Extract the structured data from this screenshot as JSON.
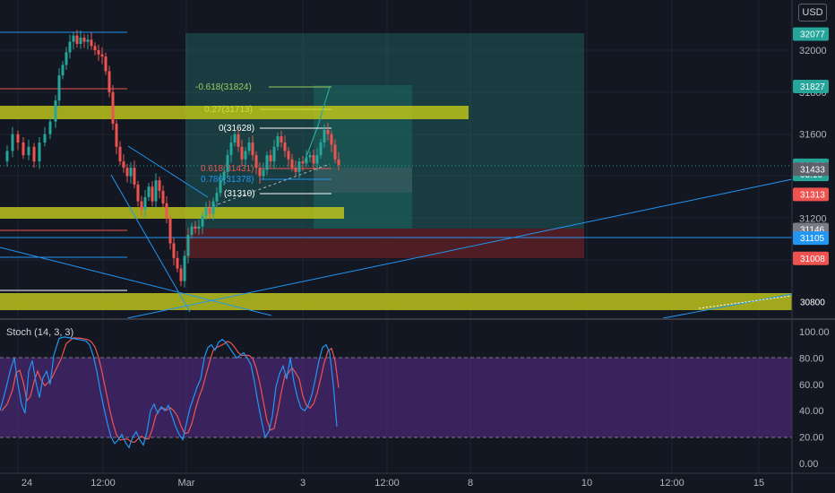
{
  "currency": "USD",
  "colors": {
    "background": "#131722",
    "grid": "#1f2330",
    "text": "#b2b5be",
    "up": "#26a69a",
    "down": "#ef5350",
    "zone_yellow": "#bcc21a",
    "trendline": "#2196f3",
    "target_zone": "#1e6b63",
    "stop_zone": "#5a1f25",
    "stoch_k": "#2196f3",
    "stoch_d": "#ef5350",
    "stoch_band": "#5b2d8e"
  },
  "price_axis": {
    "ticks": [
      "32000",
      "31800",
      "31600",
      "31200",
      "30800"
    ],
    "tags": [
      {
        "text": "32077",
        "price": 32077,
        "color": "#26a69a"
      },
      {
        "text": "31827",
        "price": 31827,
        "color": "#26a69a"
      },
      {
        "text": "31452",
        "price": 31452,
        "color": "#26a69a"
      },
      {
        "text": "03:10",
        "price": 31408,
        "color": "#26a69a"
      },
      {
        "text": "31433",
        "price": 31433,
        "color": "#5d606b"
      },
      {
        "text": "31313",
        "price": 31313,
        "color": "#ef5350"
      },
      {
        "text": "31146",
        "price": 31146,
        "color": "#787b86"
      },
      {
        "text": "31105",
        "price": 31105,
        "color": "#2196f3"
      },
      {
        "text": "31008",
        "price": 31008,
        "color": "#ef5350"
      },
      {
        "text": "30800",
        "price": 30800,
        "color": "#131722"
      }
    ]
  },
  "stoch_axis": {
    "ticks": [
      "100.00",
      "80.00",
      "60.00",
      "40.00",
      "20.00",
      "0.00"
    ]
  },
  "time_axis": {
    "ticks": [
      "24",
      "12:00",
      "Mar",
      "3",
      "12:00",
      "8",
      "10",
      "12:00",
      "15"
    ]
  },
  "indicator": {
    "label": "Stoch (14, 3, 3)"
  },
  "fib_labels": [
    {
      "text": "-0.618(31824)",
      "color": "#9ccc65"
    },
    {
      "text": "0.27(31713)",
      "color": "#cddc39"
    },
    {
      "text": "0(31628)",
      "color": "#ffffff"
    },
    {
      "text": "0.618(31431)",
      "color": "#ef5350"
    },
    {
      "text": "0.786(31378)",
      "color": "#2196f3"
    },
    {
      "text": "(31310)",
      "color": "#ffffff"
    }
  ]
}
